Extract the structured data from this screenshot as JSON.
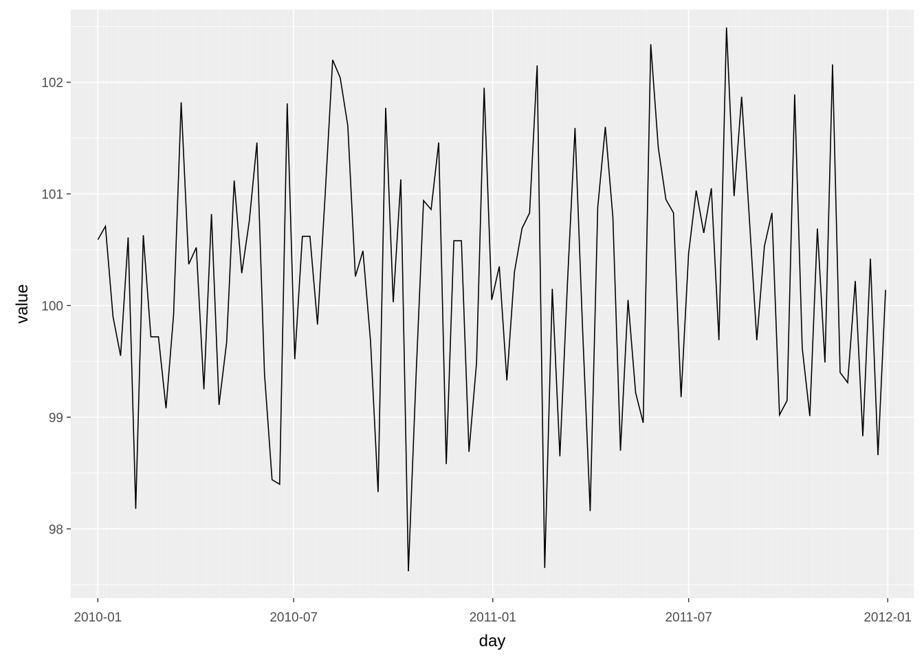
{
  "chart_data": {
    "type": "line",
    "title": "",
    "xlabel": "day",
    "ylabel": "value",
    "xlim": [
      "2009-12-07",
      "2012-01-25"
    ],
    "ylim": [
      97.38,
      102.65
    ],
    "x_ticks": [
      {
        "date": "2010-01-01",
        "label": "2010-01"
      },
      {
        "date": "2010-07-01",
        "label": "2010-07"
      },
      {
        "date": "2011-01-01",
        "label": "2011-01"
      },
      {
        "date": "2011-07-01",
        "label": "2011-07"
      },
      {
        "date": "2012-01-01",
        "label": "2012-01"
      }
    ],
    "y_ticks": [
      98,
      99,
      100,
      101,
      102
    ],
    "grid": true,
    "legend": "none",
    "colors": {
      "panel": "#ebebeb",
      "grid": "#ffffff",
      "line": "#000000",
      "tick_text": "#4d4d4d"
    },
    "series": [
      {
        "x": [
          "2010-01-01",
          "2010-01-08",
          "2010-01-15",
          "2010-01-22",
          "2010-01-29",
          "2010-02-05",
          "2010-02-12",
          "2010-02-19",
          "2010-02-26",
          "2010-03-05",
          "2010-03-12",
          "2010-03-19",
          "2010-03-26",
          "2010-04-02",
          "2010-04-09",
          "2010-04-16",
          "2010-04-23",
          "2010-04-30",
          "2010-05-07",
          "2010-05-14",
          "2010-05-21",
          "2010-05-28",
          "2010-06-04",
          "2010-06-11",
          "2010-06-18",
          "2010-06-25",
          "2010-07-02",
          "2010-07-09",
          "2010-07-16",
          "2010-07-23",
          "2010-07-30",
          "2010-08-06",
          "2010-08-13",
          "2010-08-20",
          "2010-08-27",
          "2010-09-03",
          "2010-09-10",
          "2010-09-17",
          "2010-09-24",
          "2010-10-01",
          "2010-10-08",
          "2010-10-15",
          "2010-10-22",
          "2010-10-29",
          "2010-11-05",
          "2010-11-12",
          "2010-11-19",
          "2010-11-26",
          "2010-12-03",
          "2010-12-10",
          "2010-12-17",
          "2010-12-24",
          "2010-12-31",
          "2011-01-07",
          "2011-01-14",
          "2011-01-21",
          "2011-01-28",
          "2011-02-04",
          "2011-02-11",
          "2011-02-18",
          "2011-02-25",
          "2011-03-04",
          "2011-03-11",
          "2011-03-18",
          "2011-03-25",
          "2011-04-01",
          "2011-04-08",
          "2011-04-15",
          "2011-04-22",
          "2011-04-29",
          "2011-05-06",
          "2011-05-13",
          "2011-05-20",
          "2011-05-27",
          "2011-06-03",
          "2011-06-10",
          "2011-06-17",
          "2011-06-24",
          "2011-07-01",
          "2011-07-08",
          "2011-07-15",
          "2011-07-22",
          "2011-07-29",
          "2011-08-05",
          "2011-08-12",
          "2011-08-19",
          "2011-08-26",
          "2011-09-02",
          "2011-09-09",
          "2011-09-16",
          "2011-09-23",
          "2011-09-30",
          "2011-10-07",
          "2011-10-14",
          "2011-10-21",
          "2011-10-28",
          "2011-11-04",
          "2011-11-11",
          "2011-11-18",
          "2011-11-25",
          "2011-12-02",
          "2011-12-09",
          "2011-12-16",
          "2011-12-23",
          "2011-12-30"
        ],
        "values": [
          100.59,
          100.71,
          99.9,
          99.55,
          100.61,
          98.18,
          100.63,
          99.72,
          99.72,
          99.08,
          99.92,
          101.82,
          100.37,
          100.52,
          99.25,
          100.82,
          99.11,
          99.67,
          101.12,
          100.29,
          100.76,
          101.46,
          99.39,
          98.44,
          98.4,
          101.81,
          99.52,
          100.62,
          100.62,
          99.83,
          100.98,
          102.2,
          102.04,
          101.61,
          100.26,
          100.49,
          99.68,
          98.33,
          101.77,
          100.03,
          101.13,
          97.62,
          99.35,
          100.94,
          100.86,
          101.46,
          98.58,
          100.58,
          100.58,
          98.69,
          99.49,
          101.95,
          100.05,
          100.35,
          99.33,
          100.3,
          100.69,
          100.83,
          102.15,
          97.65,
          100.15,
          98.65,
          100.2,
          101.59,
          99.79,
          98.16,
          100.88,
          101.6,
          100.79,
          98.7,
          100.05,
          99.22,
          98.95,
          102.34,
          101.41,
          100.95,
          100.83,
          99.18,
          100.47,
          101.03,
          100.65,
          101.05,
          99.69,
          102.49,
          100.98,
          101.87,
          100.8,
          99.69,
          100.53,
          100.83,
          99.02,
          99.15,
          101.89,
          99.62,
          99.01,
          100.69,
          99.49,
          102.16,
          99.4,
          99.31,
          100.22,
          98.83,
          100.42,
          98.66,
          100.14
        ]
      }
    ]
  }
}
